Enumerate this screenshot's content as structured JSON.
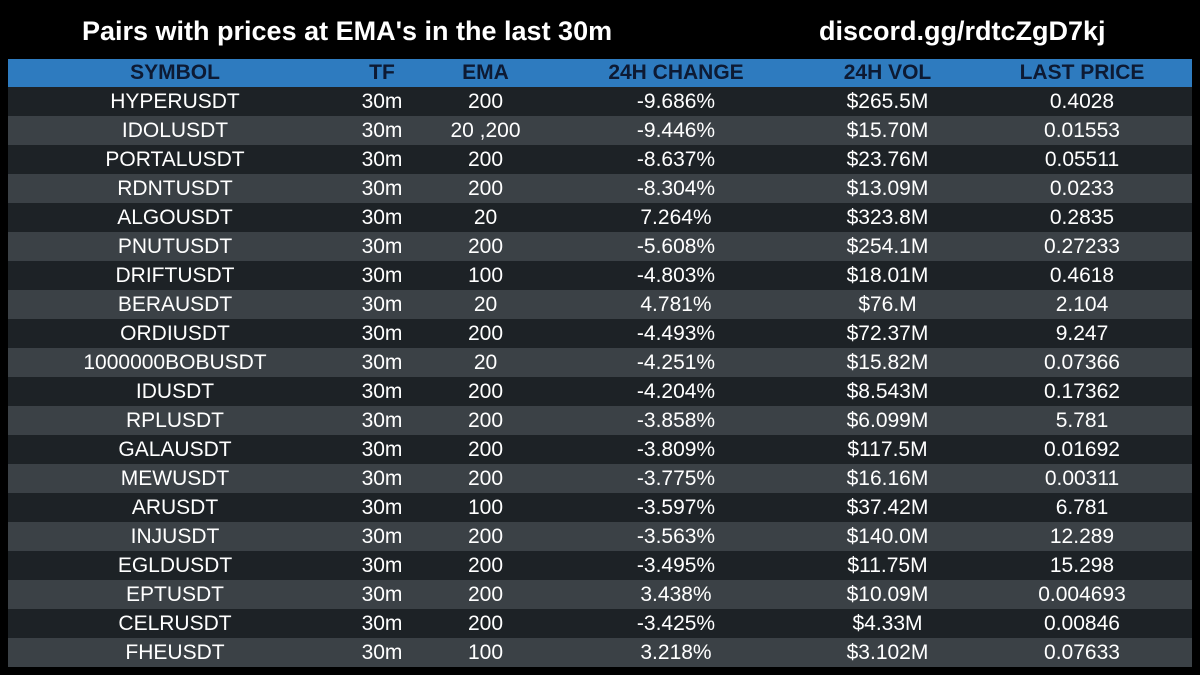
{
  "header": {
    "title": "Pairs with prices at EMA's in the last 30m",
    "discord": "discord.gg/rdtcZgD7kj"
  },
  "colors": {
    "background": "#000000",
    "header_row": "#2e7bbf",
    "header_text": "#0d1a33",
    "row_dark": "#1d2226",
    "row_light": "#3b4146",
    "text": "#ffffff"
  },
  "table": {
    "columns": [
      "SYMBOL",
      "TF",
      "EMA",
      "24H CHANGE",
      "24H VOL",
      "LAST PRICE"
    ],
    "rows": [
      [
        "HYPERUSDT",
        "30m",
        "200",
        "-9.686%",
        "$265.5M",
        "0.4028"
      ],
      [
        "IDOLUSDT",
        "30m",
        "20 ,200",
        "-9.446%",
        "$15.70M",
        "0.01553"
      ],
      [
        "PORTALUSDT",
        "30m",
        "200",
        "-8.637%",
        "$23.76M",
        "0.05511"
      ],
      [
        "RDNTUSDT",
        "30m",
        "200",
        "-8.304%",
        "$13.09M",
        "0.0233"
      ],
      [
        "ALGOUSDT",
        "30m",
        "20",
        "7.264%",
        "$323.8M",
        "0.2835"
      ],
      [
        "PNUTUSDT",
        "30m",
        "200",
        "-5.608%",
        "$254.1M",
        "0.27233"
      ],
      [
        "DRIFTUSDT",
        "30m",
        "100",
        "-4.803%",
        "$18.01M",
        "0.4618"
      ],
      [
        "BERAUSDT",
        "30m",
        "20",
        "4.781%",
        "$76.M",
        "2.104"
      ],
      [
        "ORDIUSDT",
        "30m",
        "200",
        "-4.493%",
        "$72.37M",
        "9.247"
      ],
      [
        "1000000BOBUSDT",
        "30m",
        "20",
        "-4.251%",
        "$15.82M",
        "0.07366"
      ],
      [
        "IDUSDT",
        "30m",
        "200",
        "-4.204%",
        "$8.543M",
        "0.17362"
      ],
      [
        "RPLUSDT",
        "30m",
        "200",
        "-3.858%",
        "$6.099M",
        "5.781"
      ],
      [
        "GALAUSDT",
        "30m",
        "200",
        "-3.809%",
        "$117.5M",
        "0.01692"
      ],
      [
        "MEWUSDT",
        "30m",
        "200",
        "-3.775%",
        "$16.16M",
        "0.00311"
      ],
      [
        "ARUSDT",
        "30m",
        "100",
        "-3.597%",
        "$37.42M",
        "6.781"
      ],
      [
        "INJUSDT",
        "30m",
        "200",
        "-3.563%",
        "$140.0M",
        "12.289"
      ],
      [
        "EGLDUSDT",
        "30m",
        "200",
        "-3.495%",
        "$11.75M",
        "15.298"
      ],
      [
        "EPTUSDT",
        "30m",
        "200",
        "3.438%",
        "$10.09M",
        "0.004693"
      ],
      [
        "CELRUSDT",
        "30m",
        "200",
        "-3.425%",
        "$4.33M",
        "0.00846"
      ],
      [
        "FHEUSDT",
        "30m",
        "100",
        "3.218%",
        "$3.102M",
        "0.07633"
      ]
    ]
  }
}
